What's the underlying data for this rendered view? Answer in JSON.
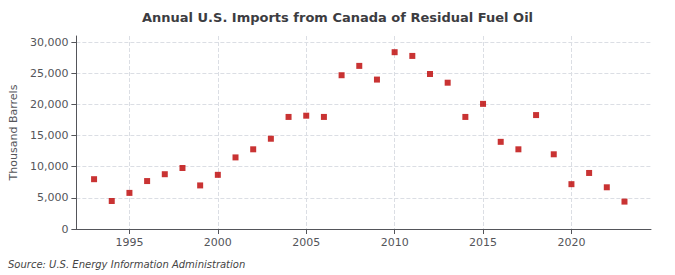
{
  "chart_data": {
    "type": "scatter",
    "title": "Annual U.S. Imports from Canada of Residual Fuel Oil",
    "ylabel": "Thousand Barrels",
    "annotation": "Source: U.S. Energy Information Administration",
    "x": [
      1993,
      1994,
      1995,
      1996,
      1997,
      1998,
      1999,
      2000,
      2001,
      2002,
      2003,
      2004,
      2005,
      2006,
      2007,
      2008,
      2009,
      2010,
      2011,
      2012,
      2013,
      2014,
      2015,
      2016,
      2017,
      2018,
      2019,
      2020,
      2021,
      2022,
      2023
    ],
    "values": [
      8000,
      4500,
      5800,
      7700,
      8800,
      9800,
      7000,
      8700,
      11500,
      12800,
      14500,
      18000,
      18200,
      18000,
      24700,
      26200,
      24000,
      28400,
      27800,
      24900,
      23500,
      18000,
      20100,
      14000,
      12800,
      18300,
      12000,
      7200,
      9000,
      6700,
      4400
    ],
    "color": "#bb0000",
    "marker": "square",
    "xlim": [
      1992,
      2024.5
    ],
    "ylim": [
      0,
      31000
    ],
    "xticks": [
      1995,
      2000,
      2005,
      2010,
      2015,
      2020
    ],
    "yticks": [
      0,
      {
        "value": 5000,
        "label": "5,000"
      },
      {
        "value": 10000,
        "label": "10,000"
      },
      {
        "value": 15000,
        "label": "15,000"
      },
      {
        "value": 20000,
        "label": "20,000"
      },
      {
        "value": 25000,
        "label": "25,000"
      },
      {
        "value": 30000,
        "label": "30,000"
      }
    ],
    "grid": true
  }
}
